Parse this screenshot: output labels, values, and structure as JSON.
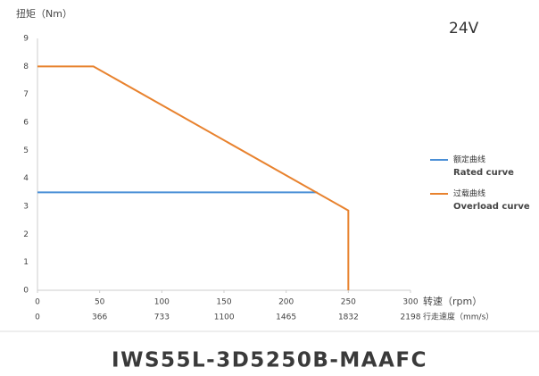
{
  "chart_data": {
    "type": "line",
    "title": "IWS55L-3D5250B-MAAFC",
    "annotation": "24V",
    "y_label": "扭矩（Nm）",
    "x_label": "转速（rpm）",
    "x2_label": "行走速度（mm/s）",
    "xlim": [
      0,
      300
    ],
    "xticks": [
      0,
      50,
      100,
      150,
      200,
      250,
      300
    ],
    "x2lim": [
      0,
      2198
    ],
    "x2ticks": [
      0,
      366,
      733,
      1100,
      1465,
      1832,
      2198
    ],
    "ylim": [
      0,
      9
    ],
    "yticks": [
      0,
      1,
      2,
      3,
      4,
      5,
      6,
      7,
      8,
      9
    ],
    "grid": false,
    "series": [
      {
        "name": "额定曲线",
        "name_en": "Rated curve",
        "color": "#4a8fd6",
        "x": [
          0,
          225
        ],
        "values": [
          3.5,
          3.5
        ]
      },
      {
        "name": "过载曲线",
        "name_en": "Overload curve",
        "color": "#e8822e",
        "x": [
          0,
          45,
          250,
          250
        ],
        "values": [
          8,
          8,
          2.85,
          0
        ]
      }
    ]
  }
}
